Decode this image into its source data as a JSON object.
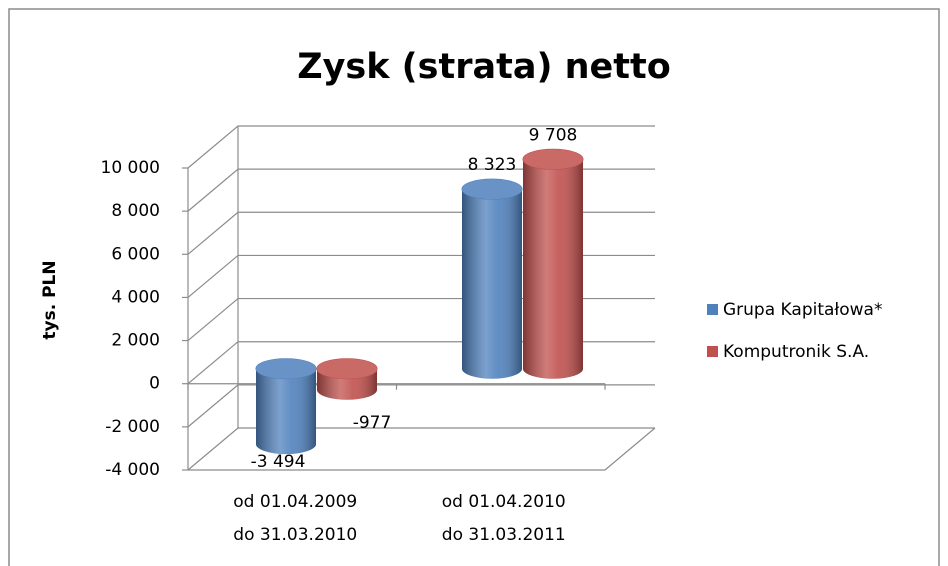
{
  "chart_data": {
    "type": "bar3d",
    "title": "Zysk (strata) netto",
    "ylabel": "tys. PLN",
    "categories": [
      [
        "od 01.04.2009",
        "do 31.03.2010"
      ],
      [
        "od 01.04.2010",
        "do 31.03.2011"
      ]
    ],
    "series": [
      {
        "name": "Grupa Kapitałowa*",
        "color": "#4f81bd",
        "values": [
          -3494,
          8323
        ],
        "value_labels": [
          "-3 494",
          "8 323"
        ]
      },
      {
        "name": "Komputronik S.A.",
        "color": "#c0504d",
        "values": [
          -977,
          9708
        ],
        "value_labels": [
          "-977",
          "9 708"
        ]
      }
    ],
    "ylim": [
      -4000,
      10000
    ],
    "yticks": [
      {
        "value": -4000,
        "label": "-4 000"
      },
      {
        "value": -2000,
        "label": "-2 000"
      },
      0,
      {
        "value": 2000,
        "label": "2 000"
      },
      {
        "value": 4000,
        "label": "4 000"
      },
      {
        "value": 6000,
        "label": "6 000"
      },
      {
        "value": 8000,
        "label": "8 000"
      },
      {
        "value": 10000,
        "label": "10 000"
      }
    ],
    "grid": true,
    "legend": "right"
  }
}
